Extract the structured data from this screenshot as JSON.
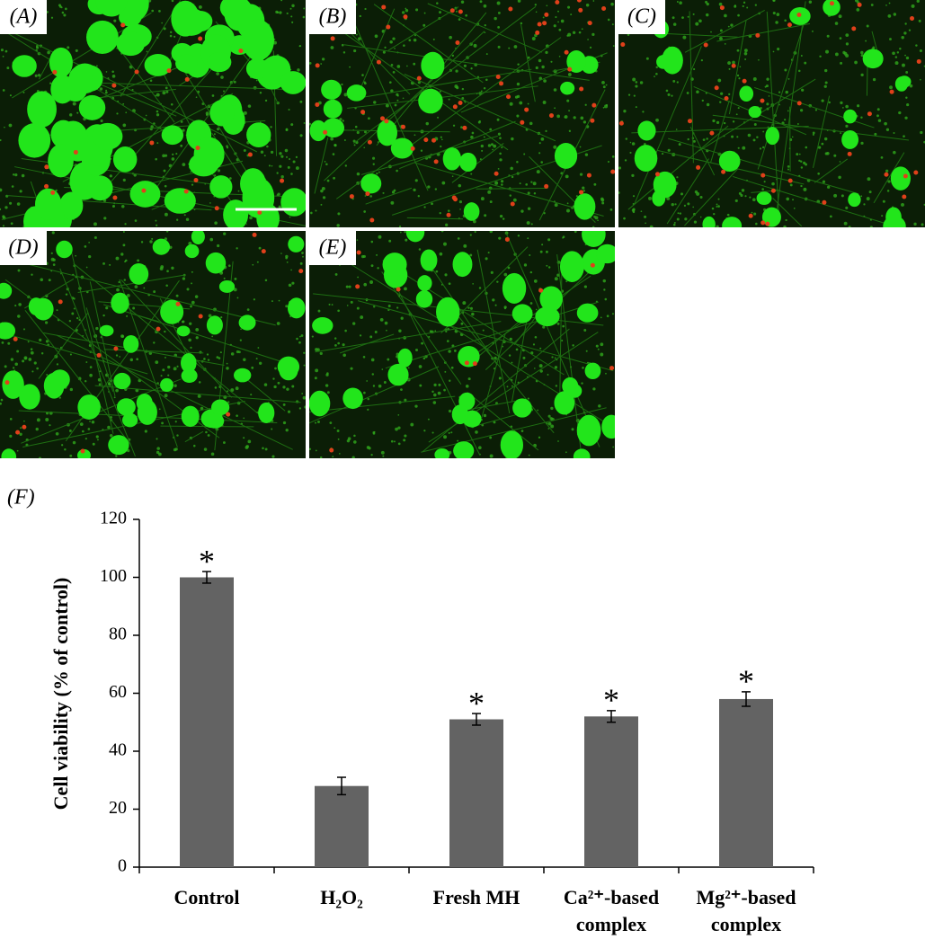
{
  "images": {
    "labels": [
      "(A)",
      "(B)",
      "(C)",
      "(D)",
      "(E)"
    ]
  },
  "chart_data": {
    "type": "bar",
    "panel_label": "(F)",
    "ylabel": "Cell viability (% of control)",
    "categories": [
      "Control",
      "H₂O₂",
      "Fresh MH",
      "Ca²⁺-based complex",
      "Mg²⁺-based complex"
    ],
    "values": [
      100,
      28,
      51,
      52,
      58
    ],
    "errors": [
      2,
      3,
      2,
      2,
      2.5
    ],
    "significance": [
      "*",
      null,
      "*",
      "*",
      "*"
    ],
    "color": "#636363",
    "ylim": [
      0,
      120
    ],
    "yticks": [
      0,
      20,
      40,
      60,
      80,
      100,
      120
    ],
    "grid": false
  }
}
